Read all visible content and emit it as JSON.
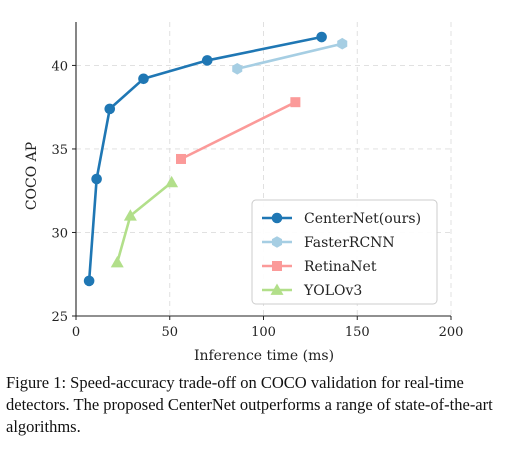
{
  "chart_data": {
    "type": "line",
    "xlabel": "Inference time (ms)",
    "ylabel": "COCO AP",
    "xlim": [
      0,
      200
    ],
    "ylim": [
      25,
      42.6
    ],
    "xticks": [
      0,
      50,
      100,
      150,
      200
    ],
    "yticks": [
      25,
      30,
      35,
      40
    ],
    "grid": true,
    "legend_position": "lower-right",
    "series": [
      {
        "name": "CenterNet(ours)",
        "color": "#1f77b4",
        "marker": "circle",
        "x": [
          7,
          11,
          18,
          36,
          70,
          131
        ],
        "y": [
          27.1,
          33.2,
          37.4,
          39.2,
          40.3,
          41.7
        ]
      },
      {
        "name": "FasterRCNN",
        "color": "#a6cee3",
        "marker": "hexagon",
        "x": [
          86,
          142
        ],
        "y": [
          39.8,
          41.3
        ]
      },
      {
        "name": "RetinaNet",
        "color": "#fb9a99",
        "marker": "square",
        "x": [
          56,
          117
        ],
        "y": [
          34.4,
          37.8
        ]
      },
      {
        "name": "YOLOv3",
        "color": "#b2df8a",
        "marker": "triangle",
        "x": [
          22,
          29,
          51
        ],
        "y": [
          28.2,
          31.0,
          33.0
        ]
      }
    ]
  },
  "caption": "Figure 1: Speed-accuracy trade-off on COCO validation for real-time detectors. The proposed CenterNet outperforms a range of state-of-the-art algorithms."
}
